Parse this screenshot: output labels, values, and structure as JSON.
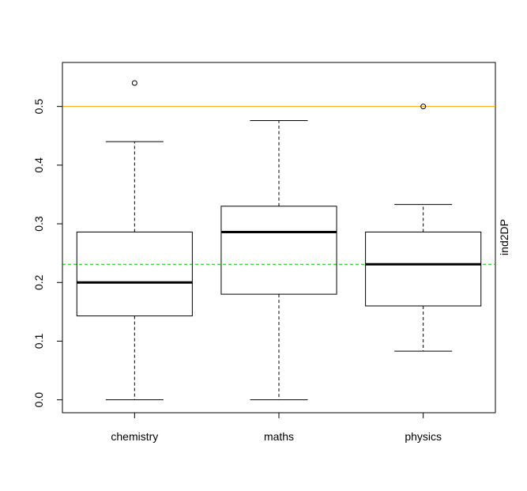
{
  "chart_data": {
    "type": "boxplot",
    "title": "",
    "xlabel": "",
    "ylabel": "",
    "right_label": "ind2DP",
    "categories": [
      "chemistry",
      "maths",
      "physics"
    ],
    "ylim": [
      -0.022,
      0.575
    ],
    "yticks": [
      0.0,
      0.1,
      0.2,
      0.3,
      0.4,
      0.5
    ],
    "ytick_labels": [
      "0.0",
      "0.1",
      "0.2",
      "0.3",
      "0.4",
      "0.5"
    ],
    "grid": false,
    "boxes": [
      {
        "name": "chemistry",
        "whisker_low": 0.0,
        "q1": 0.143,
        "median": 0.2,
        "q3": 0.286,
        "whisker_high": 0.44,
        "outliers": [
          0.54
        ]
      },
      {
        "name": "maths",
        "whisker_low": 0.0,
        "q1": 0.18,
        "median": 0.286,
        "q3": 0.33,
        "whisker_high": 0.476,
        "outliers": []
      },
      {
        "name": "physics",
        "whisker_low": 0.083,
        "q1": 0.16,
        "median": 0.231,
        "q3": 0.286,
        "whisker_high": 0.333,
        "outliers": [
          0.5
        ]
      }
    ],
    "reference_lines": [
      {
        "y": 0.5,
        "color": "#ffa500",
        "style": "solid"
      },
      {
        "y": 0.231,
        "color": "#00cc00",
        "style": "dashed"
      }
    ]
  }
}
